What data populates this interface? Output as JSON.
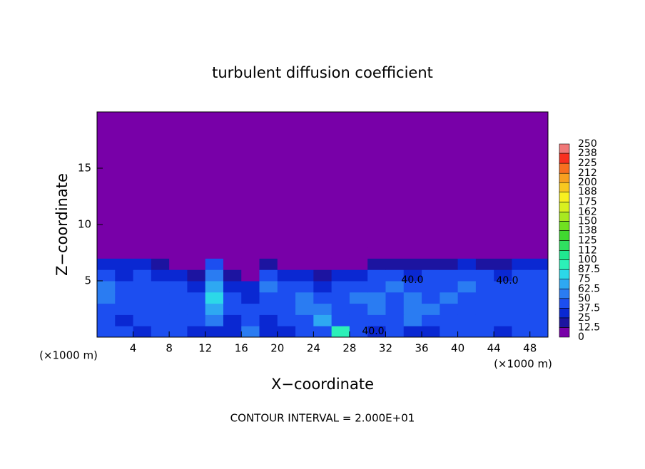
{
  "chart_data": {
    "type": "heatmap",
    "title": "turbulent diffusion coefficient",
    "x_label": "X−coordinate",
    "y_label": "Z−coordinate",
    "x_unit_labels": [
      "(×1000 m)",
      "(×1000 m)"
    ],
    "footer": "CONTOUR INTERVAL = 2.000E+01",
    "contour_labels": [
      "40.0",
      "40.0",
      "40.0"
    ],
    "xlim": [
      0,
      50
    ],
    "ylim": [
      0,
      20
    ],
    "xticks": [
      4,
      8,
      12,
      16,
      20,
      24,
      28,
      32,
      36,
      40,
      44,
      48
    ],
    "yticks": [
      5,
      10,
      15
    ],
    "x_edges": [
      0,
      2,
      4,
      6,
      8,
      10,
      12,
      14,
      16,
      18,
      20,
      22,
      24,
      26,
      28,
      30,
      32,
      34,
      36,
      38,
      40,
      42,
      44,
      46,
      48,
      50
    ],
    "y_edges": [
      0,
      1,
      2,
      3,
      4,
      5,
      6,
      7,
      8,
      20
    ],
    "z": [
      [
        45,
        40,
        35,
        40,
        40,
        35,
        30,
        25,
        50,
        30,
        35,
        40,
        45,
        90,
        40,
        35,
        40,
        30,
        35,
        40,
        45,
        40,
        35,
        40,
        40
      ],
      [
        40,
        35,
        40,
        45,
        40,
        40,
        60,
        30,
        40,
        35,
        40,
        45,
        70,
        40,
        40,
        45,
        40,
        50,
        45,
        40,
        40,
        45,
        40,
        40,
        45
      ],
      [
        45,
        40,
        45,
        40,
        45,
        45,
        70,
        40,
        45,
        40,
        45,
        60,
        50,
        40,
        45,
        50,
        45,
        60,
        50,
        45,
        45,
        40,
        45,
        45,
        40
      ],
      [
        50,
        45,
        40,
        45,
        45,
        40,
        75,
        40,
        35,
        45,
        40,
        50,
        40,
        45,
        50,
        55,
        45,
        50,
        45,
        50,
        40,
        45,
        40,
        45,
        45
      ],
      [
        60,
        40,
        45,
        40,
        40,
        30,
        70,
        30,
        30,
        50,
        40,
        45,
        30,
        40,
        40,
        45,
        50,
        40,
        40,
        45,
        50,
        40,
        45,
        40,
        40
      ],
      [
        40,
        35,
        40,
        30,
        25,
        15,
        60,
        15,
        10,
        40,
        30,
        30,
        15,
        35,
        35,
        40,
        40,
        35,
        40,
        40,
        40,
        40,
        35,
        40,
        40
      ],
      [
        30,
        30,
        35,
        20,
        5,
        0,
        40,
        0,
        0,
        20,
        5,
        10,
        0,
        0,
        10,
        15,
        20,
        15,
        20,
        20,
        25,
        20,
        20,
        25,
        30
      ],
      [
        0,
        5,
        10,
        0,
        0,
        0,
        10,
        0,
        0,
        5,
        0,
        5,
        0,
        0,
        0,
        0,
        5,
        0,
        0,
        0,
        0,
        0,
        0,
        0,
        0
      ],
      [
        0,
        0,
        0,
        0,
        0,
        0,
        0,
        0,
        0,
        0,
        0,
        0,
        0,
        0,
        0,
        0,
        0,
        0,
        0,
        0,
        0,
        0,
        0,
        0,
        0
      ]
    ],
    "levels": [
      0,
      12.5,
      25,
      37.5,
      50,
      62.5,
      75,
      87.5,
      100,
      112,
      125,
      138,
      150,
      162,
      175,
      188,
      200,
      212,
      225,
      238,
      250
    ],
    "level_colors": [
      "#7800a8",
      "#1c14a0",
      "#0a28d2",
      "#1c4ef0",
      "#2a7cf2",
      "#2ea8f2",
      "#2cd8e8",
      "#2cf0b8",
      "#20e890",
      "#30e060",
      "#40d830",
      "#70e020",
      "#a8e820",
      "#d8f020",
      "#f8f020",
      "#f8c820",
      "#f8a020",
      "#f87020",
      "#f83020",
      "#f07878"
    ]
  }
}
